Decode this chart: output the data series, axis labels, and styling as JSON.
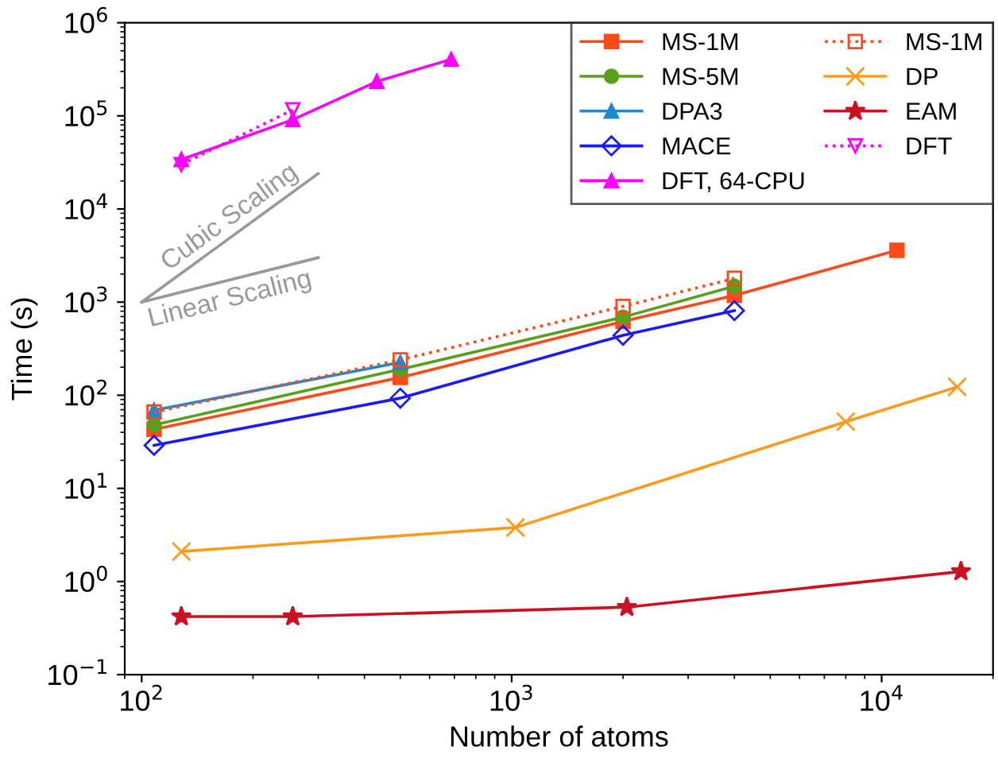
{
  "chart_data": {
    "type": "line",
    "xlabel": "Number of atoms",
    "ylabel": "Time (s)",
    "log": "xy",
    "xlim": [
      90,
      20000
    ],
    "ylim": [
      0.1,
      1000000
    ],
    "xticks": [
      {
        "value": 100,
        "label": "10$^{2}$"
      },
      {
        "value": 1000,
        "label": "10$^{3}$"
      },
      {
        "value": 10000,
        "label": "10$^{4}$"
      }
    ],
    "yticks": [
      {
        "value": 0.1,
        "label": "10$^{−1}$"
      },
      {
        "value": 1,
        "label": "10$^{0}$"
      },
      {
        "value": 10,
        "label": "10$^{1}$"
      },
      {
        "value": 100,
        "label": "10$^{2}$"
      },
      {
        "value": 1000,
        "label": "10$^{3}$"
      },
      {
        "value": 10000,
        "label": "10$^{4}$"
      },
      {
        "value": 100000,
        "label": "10$^{5}$"
      },
      {
        "value": 1000000,
        "label": "10$^{6}$"
      }
    ],
    "grid": false,
    "legend": "top right",
    "series": [
      {
        "name": "MS-1M",
        "color": "#ff4a1c",
        "marker": "square",
        "line_style": "solid",
        "x": [
          108,
          500,
          2000,
          4000,
          11000
        ],
        "values": [
          43,
          155,
          620,
          1180,
          3600
        ]
      },
      {
        "name": "MS-5M",
        "color": "#5a9e1e",
        "marker": "circle",
        "line_style": "solid",
        "x": [
          108,
          500,
          2000,
          4000
        ],
        "values": [
          48,
          190,
          690,
          1480
        ]
      },
      {
        "name": "DPA3",
        "color": "#1f88d2",
        "marker": "triangle",
        "line_style": "solid",
        "x": [
          108,
          500
        ],
        "values": [
          69,
          225
        ]
      },
      {
        "name": "MACE",
        "color": "#1a1aff",
        "marker": "diamond",
        "line_style": "solid",
        "x": [
          108,
          500,
          2000,
          4000
        ],
        "values": [
          29,
          93,
          440,
          810
        ]
      },
      {
        "name": "DFT, 64-CPU",
        "color": "#ff00ff",
        "marker": "triangle",
        "line_style": "solid",
        "x": [
          128,
          256,
          432,
          686
        ],
        "values": [
          34000,
          91000,
          234000,
          405000
        ]
      },
      {
        "name": "MS-1M",
        "color": "#ff4a1c",
        "marker": "square",
        "line_style": "dotted",
        "x": [
          108,
          500,
          2000,
          4000
        ],
        "values": [
          66,
          240,
          900,
          1800
        ]
      },
      {
        "name": "DP",
        "color": "#ff9a1a",
        "marker": "cross",
        "line_style": "solid",
        "x": [
          128,
          1024,
          8000,
          16000
        ],
        "values": [
          2.1,
          3.8,
          52,
          123
        ]
      },
      {
        "name": "EAM",
        "color": "#cc1122",
        "marker": "star",
        "line_style": "solid",
        "x": [
          128,
          256,
          2048,
          16384
        ],
        "values": [
          0.42,
          0.42,
          0.53,
          1.28
        ]
      },
      {
        "name": "DFT",
        "color": "#ff00ff",
        "marker": "triangle",
        "line_style": "dotted",
        "x": [
          128,
          256
        ],
        "values": [
          30000,
          116000
        ]
      },
      {
        "name": "Cubic Scaling",
        "color": "#999999",
        "marker": "none",
        "line_style": "solid",
        "x": [
          100,
          300
        ],
        "values": [
          1000,
          24000
        ]
      },
      {
        "name": "Linear Scaling",
        "color": "#999999",
        "marker": "none",
        "line_style": "solid",
        "x": [
          100,
          300
        ],
        "values": [
          1000,
          3000
        ]
      }
    ]
  }
}
